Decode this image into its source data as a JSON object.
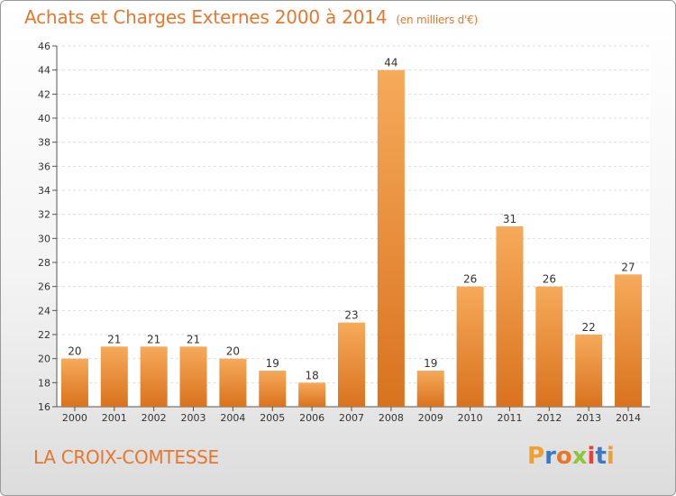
{
  "header": {
    "title": "Achats et Charges Externes 2000 à 2014",
    "unit": "(en milliers d'€)"
  },
  "footer": {
    "commune": "LA CROIX-COMTESSE",
    "brand": "Proxiti"
  },
  "colors": {
    "accent": "#e8762b",
    "bar_light": "#f6aa5a",
    "bar_dark": "#d9721e",
    "brand_letters": [
      "#f0a030",
      "#3a78c8",
      "#e8762b",
      "#8cc63f",
      "#e8413c",
      "#3a78c8",
      "#f0a030"
    ]
  },
  "chart_data": {
    "type": "bar",
    "title": "Achats et Charges Externes 2000 à 2014",
    "subtitle": "(en milliers d'€)",
    "xlabel": "",
    "ylabel": "",
    "categories": [
      "2000",
      "2001",
      "2002",
      "2003",
      "2004",
      "2005",
      "2006",
      "2007",
      "2008",
      "2009",
      "2010",
      "2011",
      "2012",
      "2013",
      "2014"
    ],
    "values": [
      20,
      21,
      21,
      21,
      20,
      19,
      18,
      23,
      44,
      19,
      26,
      31,
      26,
      22,
      27
    ],
    "ylim": [
      16,
      46
    ],
    "yticks": [
      16,
      18,
      20,
      22,
      24,
      26,
      28,
      30,
      32,
      34,
      36,
      38,
      40,
      42,
      44,
      46
    ],
    "grid": true
  }
}
